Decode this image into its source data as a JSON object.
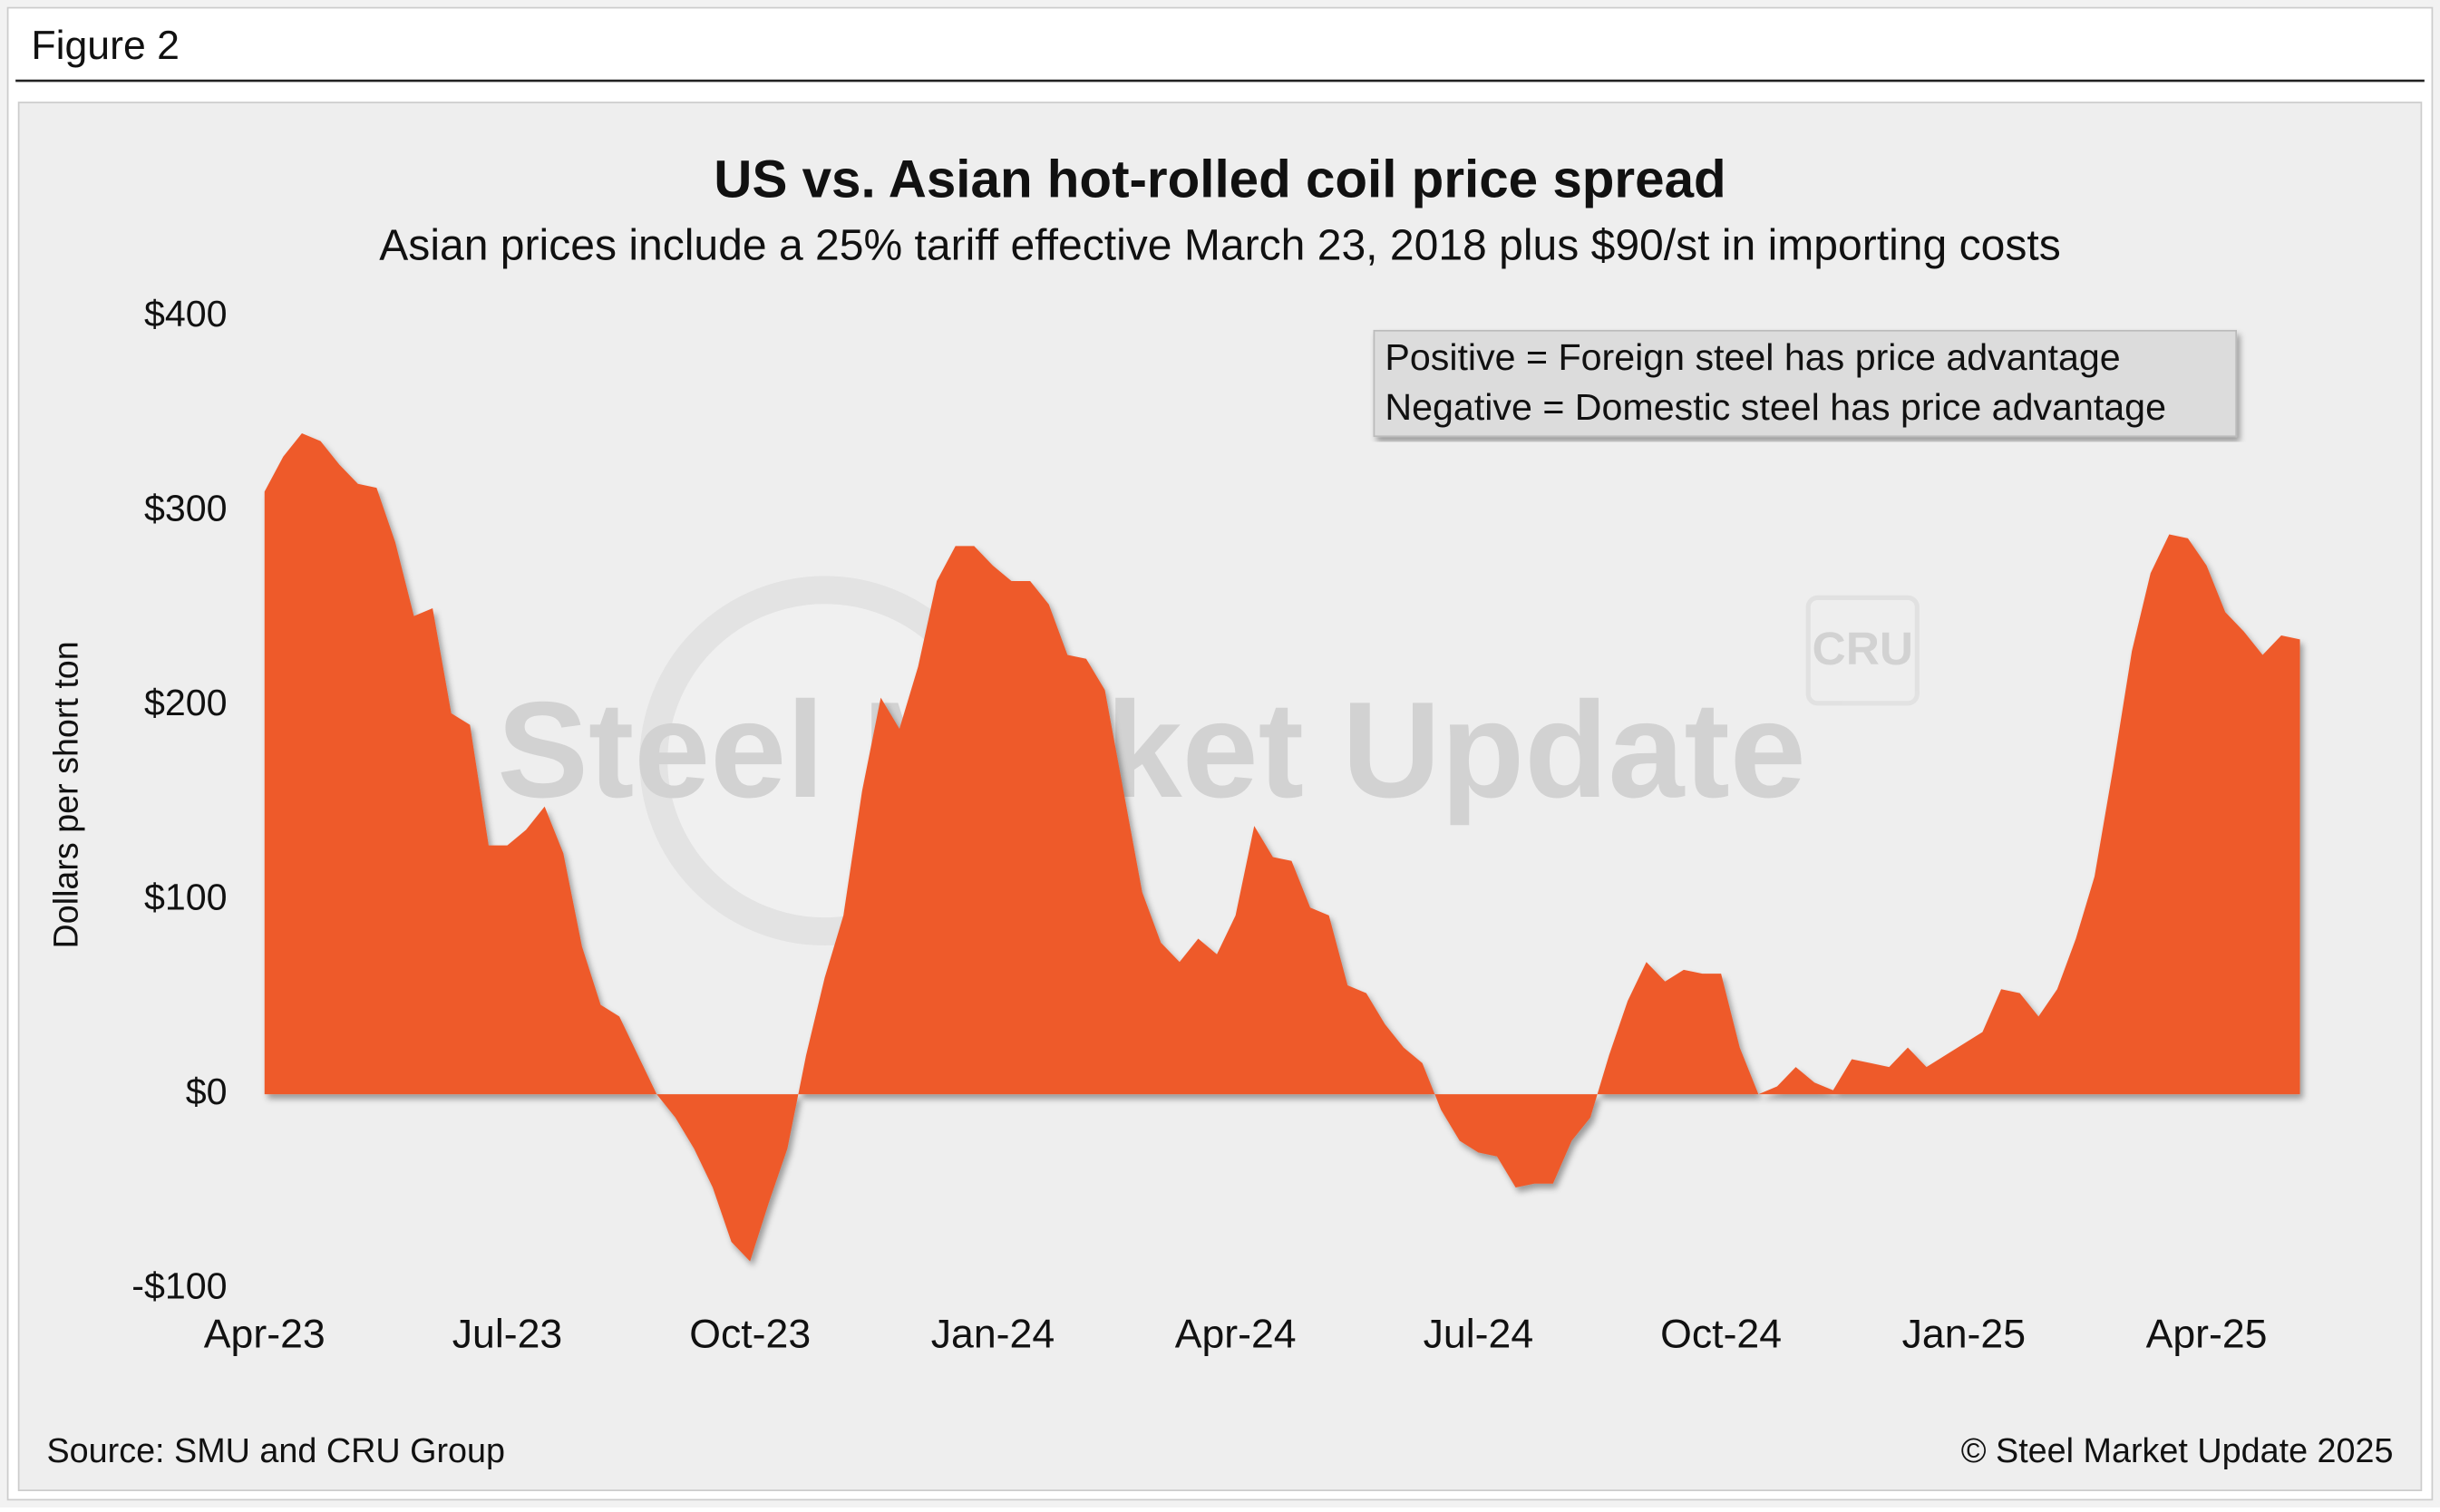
{
  "header": "Figure 2",
  "source": "Source: SMU and CRU Group",
  "copyright": "© Steel Market Update 2025",
  "watermark": [
    "Steel Market Update",
    "CRU"
  ],
  "chart_data": {
    "type": "area",
    "title": "US vs. Asian hot-rolled coil price spread",
    "subtitle": "Asian prices include a 25% tariff effective March 23, 2018 plus $90/st in importing costs",
    "y_label": "Dollars per short ton",
    "annotations": [
      "Positive = Foreign steel has price advantage",
      "Negative = Domestic steel has price advantage"
    ],
    "color": "#ee5a2a",
    "grid": false,
    "ylim": [
      -100,
      400
    ],
    "yticks": [
      {
        "value": 400,
        "label": "$400"
      },
      {
        "value": 300,
        "label": "$300"
      },
      {
        "value": 200,
        "label": "$200"
      },
      {
        "value": 100,
        "label": "$100"
      },
      {
        "value": 0,
        "label": "$0"
      },
      {
        "value": -100,
        "label": "-$100"
      }
    ],
    "categories": [
      "Apr-23",
      null,
      null,
      null,
      null,
      null,
      null,
      null,
      null,
      null,
      null,
      null,
      null,
      "Jul-23",
      null,
      null,
      null,
      null,
      null,
      null,
      null,
      null,
      null,
      null,
      null,
      null,
      "Oct-23",
      null,
      null,
      null,
      null,
      null,
      null,
      null,
      null,
      null,
      null,
      null,
      null,
      "Jan-24",
      null,
      null,
      null,
      null,
      null,
      null,
      null,
      null,
      null,
      null,
      null,
      null,
      "Apr-24",
      null,
      null,
      null,
      null,
      null,
      null,
      null,
      null,
      null,
      null,
      null,
      null,
      "Jul-24",
      null,
      null,
      null,
      null,
      null,
      null,
      null,
      null,
      null,
      null,
      null,
      null,
      "Oct-24",
      null,
      null,
      null,
      null,
      null,
      null,
      null,
      null,
      null,
      null,
      null,
      null,
      "Jan-25",
      null,
      null,
      null,
      null,
      null,
      null,
      null,
      null,
      null,
      null,
      null,
      null,
      "Apr-25",
      null,
      null,
      null,
      null,
      null
    ],
    "values": [
      310,
      328,
      340,
      336,
      324,
      314,
      312,
      284,
      246,
      250,
      196,
      190,
      128,
      128,
      136,
      148,
      124,
      76,
      46,
      40,
      20,
      0,
      -12,
      -28,
      -48,
      -76,
      -86,
      -56,
      -28,
      20,
      60,
      92,
      156,
      204,
      188,
      220,
      264,
      282,
      282,
      272,
      264,
      264,
      252,
      226,
      224,
      208,
      156,
      104,
      78,
      68,
      80,
      72,
      92,
      138,
      122,
      120,
      96,
      92,
      56,
      52,
      36,
      24,
      16,
      -8,
      -24,
      -30,
      -32,
      -48,
      -46,
      -46,
      -24,
      -12,
      20,
      48,
      68,
      58,
      64,
      62,
      62,
      24,
      0,
      4,
      14,
      6,
      2,
      18,
      16,
      14,
      24,
      14,
      20,
      26,
      32,
      54,
      52,
      40,
      54,
      80,
      112,
      168,
      228,
      268,
      288,
      286,
      272,
      248,
      238,
      226,
      236,
      234
    ]
  }
}
